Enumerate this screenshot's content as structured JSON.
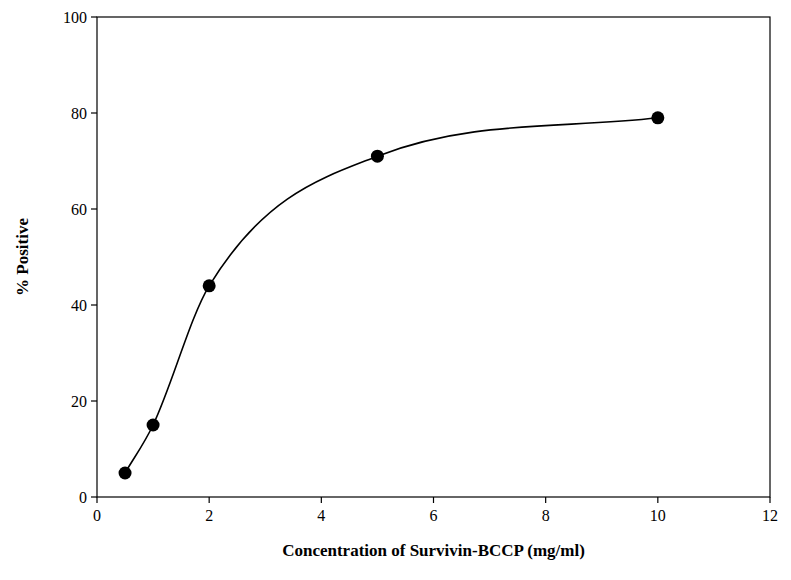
{
  "chart_data": {
    "type": "line",
    "x_label": "Concentration of Survivin-BCCP (mg/ml)",
    "y_label": "% Positive",
    "x": [
      0.5,
      1,
      2,
      5,
      10
    ],
    "values": [
      5,
      15,
      44,
      71,
      79
    ],
    "color": "#000000",
    "marker": "circle",
    "line_style": "solid",
    "xlim": [
      0,
      12
    ],
    "xticks": [
      0,
      2,
      4,
      6,
      8,
      10,
      12
    ],
    "ylim": [
      0,
      100
    ],
    "yticks": [
      0,
      20,
      40,
      60,
      80,
      100
    ],
    "grid": false
  }
}
